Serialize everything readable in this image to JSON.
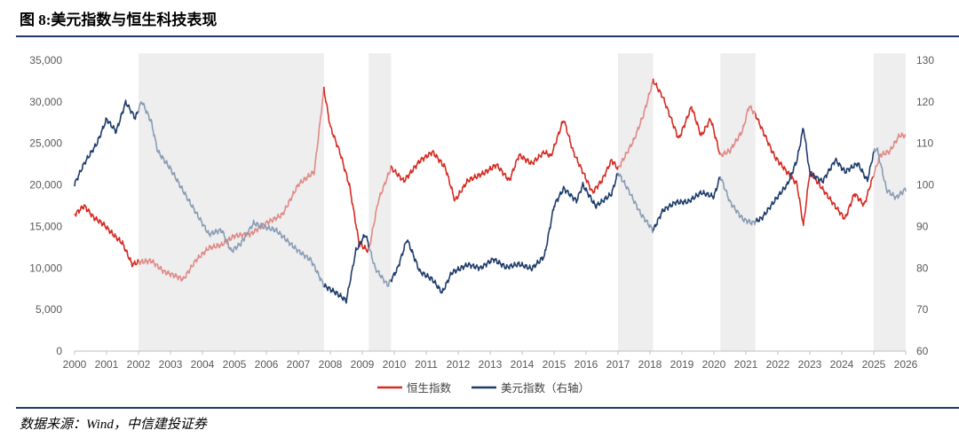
{
  "header": {
    "title": "图 8:美元指数与恒生科技表现"
  },
  "footer": {
    "source": "数据来源：Wind，中信建投证券"
  },
  "colors": {
    "hstech": "#d62b23",
    "usd": "#1f3d6b",
    "shade": "#eeeeee",
    "axis": "#bfbfbf",
    "tick": "#595959"
  },
  "chart_data": {
    "type": "line",
    "title": "图 8:美元指数与恒生科技表现",
    "x_range": [
      2000,
      2026
    ],
    "x_ticks": [
      "2000",
      "2001",
      "2002",
      "2003",
      "2004",
      "2005",
      "2006",
      "2007",
      "2008",
      "2009",
      "2010",
      "2011",
      "2012",
      "2013",
      "2014",
      "2015",
      "2016",
      "2017",
      "2018",
      "2019",
      "2020",
      "2021",
      "2022",
      "2023",
      "2024",
      "2025",
      "2026"
    ],
    "y_left": {
      "range": [
        0,
        35000
      ],
      "ticks": [
        "0",
        "5,000",
        "10,000",
        "15,000",
        "20,000",
        "25,000",
        "30,000",
        "35,000"
      ]
    },
    "y_right": {
      "range": [
        60,
        130
      ],
      "ticks": [
        "60",
        "70",
        "80",
        "90",
        "100",
        "110",
        "120",
        "130"
      ]
    },
    "shaded_periods": [
      [
        2002.0,
        2007.8
      ],
      [
        2009.2,
        2009.9
      ],
      [
        2017.0,
        2018.1
      ],
      [
        2020.2,
        2021.3
      ],
      [
        2025.0,
        2026.0
      ]
    ],
    "legend": {
      "position": "bottom-center"
    },
    "series": [
      {
        "name": "恒生指数",
        "axis": "left",
        "points": [
          [
            2000.0,
            16500
          ],
          [
            2000.3,
            17500
          ],
          [
            2000.6,
            16000
          ],
          [
            2000.9,
            15200
          ],
          [
            2001.2,
            14000
          ],
          [
            2001.5,
            13000
          ],
          [
            2001.8,
            10500
          ],
          [
            2002.0,
            10800
          ],
          [
            2002.4,
            10900
          ],
          [
            2002.8,
            9500
          ],
          [
            2003.2,
            8900
          ],
          [
            2003.4,
            8600
          ],
          [
            2003.8,
            11000
          ],
          [
            2004.2,
            12500
          ],
          [
            2004.6,
            12800
          ],
          [
            2005.0,
            13800
          ],
          [
            2005.5,
            14000
          ],
          [
            2006.0,
            15500
          ],
          [
            2006.5,
            16500
          ],
          [
            2007.0,
            20000
          ],
          [
            2007.5,
            21500
          ],
          [
            2007.8,
            31500
          ],
          [
            2008.0,
            27000
          ],
          [
            2008.3,
            24000
          ],
          [
            2008.6,
            20000
          ],
          [
            2008.9,
            13000
          ],
          [
            2009.2,
            12000
          ],
          [
            2009.5,
            18000
          ],
          [
            2009.9,
            22000
          ],
          [
            2010.3,
            20500
          ],
          [
            2010.8,
            23000
          ],
          [
            2011.2,
            24000
          ],
          [
            2011.6,
            22000
          ],
          [
            2011.9,
            18000
          ],
          [
            2012.3,
            20500
          ],
          [
            2012.8,
            21500
          ],
          [
            2013.2,
            22500
          ],
          [
            2013.6,
            20500
          ],
          [
            2013.9,
            23500
          ],
          [
            2014.3,
            22500
          ],
          [
            2014.7,
            24000
          ],
          [
            2014.9,
            23500
          ],
          [
            2015.3,
            28000
          ],
          [
            2015.6,
            24000
          ],
          [
            2015.9,
            21500
          ],
          [
            2016.2,
            19000
          ],
          [
            2016.5,
            20500
          ],
          [
            2016.8,
            23000
          ],
          [
            2017.0,
            22000
          ],
          [
            2017.5,
            25500
          ],
          [
            2017.8,
            28500
          ],
          [
            2018.1,
            32500
          ],
          [
            2018.4,
            30500
          ],
          [
            2018.7,
            27500
          ],
          [
            2018.9,
            25500
          ],
          [
            2019.3,
            29500
          ],
          [
            2019.6,
            26000
          ],
          [
            2019.9,
            28000
          ],
          [
            2020.2,
            23500
          ],
          [
            2020.5,
            24000
          ],
          [
            2020.9,
            26500
          ],
          [
            2021.1,
            29500
          ],
          [
            2021.3,
            28500
          ],
          [
            2021.6,
            26000
          ],
          [
            2021.9,
            23500
          ],
          [
            2022.3,
            21500
          ],
          [
            2022.6,
            20000
          ],
          [
            2022.8,
            15000
          ],
          [
            2023.0,
            21500
          ],
          [
            2023.4,
            19500
          ],
          [
            2023.8,
            17500
          ],
          [
            2024.1,
            16000
          ],
          [
            2024.4,
            19000
          ],
          [
            2024.7,
            17500
          ],
          [
            2024.9,
            20000
          ],
          [
            2025.2,
            23500
          ],
          [
            2025.5,
            24000
          ],
          [
            2025.8,
            26000
          ],
          [
            2026.0,
            26000
          ]
        ]
      },
      {
        "name": "美元指数（右轴）",
        "axis": "right",
        "points": [
          [
            2000.0,
            100
          ],
          [
            2000.3,
            105
          ],
          [
            2000.7,
            110
          ],
          [
            2001.0,
            116
          ],
          [
            2001.3,
            113
          ],
          [
            2001.6,
            120
          ],
          [
            2001.9,
            116
          ],
          [
            2002.1,
            120
          ],
          [
            2002.4,
            115
          ],
          [
            2002.6,
            108
          ],
          [
            2003.0,
            104
          ],
          [
            2003.3,
            100
          ],
          [
            2003.6,
            96
          ],
          [
            2003.9,
            92
          ],
          [
            2004.2,
            88
          ],
          [
            2004.6,
            89
          ],
          [
            2004.9,
            84
          ],
          [
            2005.2,
            86
          ],
          [
            2005.6,
            91
          ],
          [
            2005.9,
            90
          ],
          [
            2006.3,
            89
          ],
          [
            2006.7,
            86
          ],
          [
            2007.0,
            84
          ],
          [
            2007.4,
            82
          ],
          [
            2007.8,
            76
          ],
          [
            2008.2,
            74
          ],
          [
            2008.5,
            72
          ],
          [
            2008.8,
            84
          ],
          [
            2009.1,
            88
          ],
          [
            2009.4,
            80
          ],
          [
            2009.8,
            76
          ],
          [
            2010.1,
            80
          ],
          [
            2010.4,
            87
          ],
          [
            2010.8,
            79
          ],
          [
            2011.2,
            77
          ],
          [
            2011.5,
            74
          ],
          [
            2011.8,
            79
          ],
          [
            2012.3,
            81
          ],
          [
            2012.7,
            80
          ],
          [
            2013.1,
            82
          ],
          [
            2013.5,
            80
          ],
          [
            2013.9,
            81
          ],
          [
            2014.3,
            80
          ],
          [
            2014.7,
            83
          ],
          [
            2015.0,
            95
          ],
          [
            2015.3,
            99
          ],
          [
            2015.7,
            96
          ],
          [
            2015.9,
            100
          ],
          [
            2016.3,
            95
          ],
          [
            2016.8,
            98
          ],
          [
            2017.0,
            103
          ],
          [
            2017.3,
            99
          ],
          [
            2017.7,
            93
          ],
          [
            2018.1,
            89
          ],
          [
            2018.4,
            94
          ],
          [
            2018.8,
            96
          ],
          [
            2019.2,
            96
          ],
          [
            2019.6,
            98
          ],
          [
            2020.0,
            97
          ],
          [
            2020.2,
            102
          ],
          [
            2020.5,
            96
          ],
          [
            2020.9,
            92
          ],
          [
            2021.2,
            91
          ],
          [
            2021.5,
            92
          ],
          [
            2021.9,
            96
          ],
          [
            2022.3,
            100
          ],
          [
            2022.6,
            106
          ],
          [
            2022.8,
            114
          ],
          [
            2023.0,
            103
          ],
          [
            2023.4,
            101
          ],
          [
            2023.8,
            106
          ],
          [
            2024.1,
            103
          ],
          [
            2024.5,
            105
          ],
          [
            2024.8,
            101
          ],
          [
            2025.0,
            108
          ],
          [
            2025.1,
            109
          ],
          [
            2025.4,
            99
          ],
          [
            2025.7,
            97
          ],
          [
            2026.0,
            99
          ]
        ]
      }
    ]
  }
}
